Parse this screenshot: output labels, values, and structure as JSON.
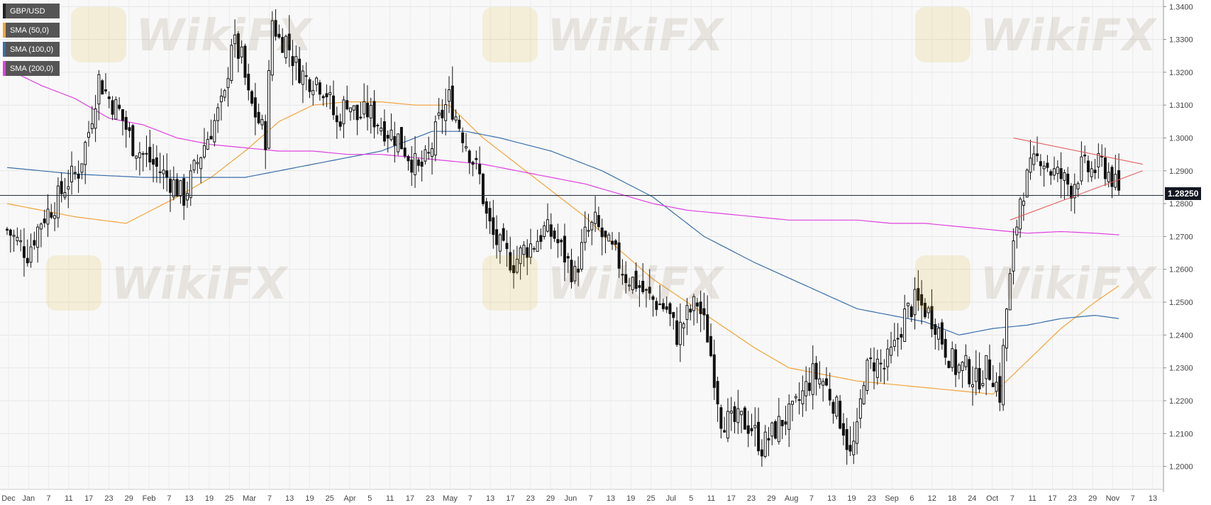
{
  "legend": [
    {
      "label": "GBP/USD",
      "color": "#222222"
    },
    {
      "label": "SMA (50,0)",
      "color": "#f2a33a"
    },
    {
      "label": "SMA (100,0)",
      "color": "#3a6ea8"
    },
    {
      "label": "SMA (200,0)",
      "color": "#e040e0"
    }
  ],
  "current_price_label": "1.28250",
  "watermark": "WikiFX",
  "chart_data": {
    "type": "candlestick",
    "symbol": "GBP/USD",
    "timeframe": "daily",
    "ylim": [
      1.193,
      1.342
    ],
    "y_ticks": [
      "1.3400",
      "1.3300",
      "1.3200",
      "1.3100",
      "1.3000",
      "1.2900",
      "1.2800",
      "1.2700",
      "1.2600",
      "1.2500",
      "1.2400",
      "1.2300",
      "1.2200",
      "1.2100",
      "1.2000"
    ],
    "x_ticks": [
      "Dec",
      "Jan",
      "7",
      "11",
      "17",
      "23",
      "29",
      "Feb",
      "7",
      "13",
      "19",
      "25",
      "Mar",
      "7",
      "13",
      "19",
      "25",
      "Apr",
      "5",
      "11",
      "17",
      "23",
      "May",
      "7",
      "13",
      "17",
      "23",
      "29",
      "Jun",
      "7",
      "13",
      "19",
      "25",
      "Jul",
      "5",
      "11",
      "17",
      "23",
      "29",
      "Aug",
      "7",
      "13",
      "19",
      "23",
      "Sep",
      "6",
      "12",
      "18",
      "24",
      "Oct",
      "7",
      "11",
      "17",
      "23",
      "29",
      "Nov",
      "7",
      "13"
    ],
    "current_price": 1.2825,
    "close_path": [
      [
        0,
        1.272
      ],
      [
        6,
        1.265
      ],
      [
        10,
        1.275
      ],
      [
        14,
        1.28
      ],
      [
        18,
        1.287
      ],
      [
        21,
        1.29
      ],
      [
        24,
        1.302
      ],
      [
        27,
        1.318
      ],
      [
        30,
        1.312
      ],
      [
        33,
        1.308
      ],
      [
        37,
        1.298
      ],
      [
        41,
        1.294
      ],
      [
        45,
        1.29
      ],
      [
        49,
        1.286
      ],
      [
        52,
        1.282
      ],
      [
        55,
        1.29
      ],
      [
        58,
        1.298
      ],
      [
        61,
        1.305
      ],
      [
        64,
        1.312
      ],
      [
        66,
        1.33
      ],
      [
        69,
        1.324
      ],
      [
        71,
        1.312
      ],
      [
        74,
        1.305
      ],
      [
        76,
        1.3
      ],
      [
        78,
        1.336
      ],
      [
        80,
        1.33
      ],
      [
        82,
        1.33
      ],
      [
        85,
        1.322
      ],
      [
        88,
        1.318
      ],
      [
        91,
        1.318
      ],
      [
        94,
        1.314
      ],
      [
        97,
        1.304
      ],
      [
        100,
        1.312
      ],
      [
        103,
        1.306
      ],
      [
        106,
        1.308
      ],
      [
        109,
        1.305
      ],
      [
        112,
        1.302
      ],
      [
        115,
        1.3
      ],
      [
        118,
        1.295
      ],
      [
        121,
        1.29
      ],
      [
        124,
        1.294
      ],
      [
        127,
        1.305
      ],
      [
        130,
        1.312
      ],
      [
        133,
        1.304
      ],
      [
        136,
        1.296
      ],
      [
        139,
        1.288
      ],
      [
        141,
        1.276
      ],
      [
        143,
        1.27
      ],
      [
        146,
        1.265
      ],
      [
        149,
        1.262
      ],
      [
        152,
        1.266
      ],
      [
        155,
        1.268
      ],
      [
        158,
        1.272
      ],
      [
        161,
        1.27
      ],
      [
        164,
        1.264
      ],
      [
        167,
        1.258
      ],
      [
        170,
        1.27
      ],
      [
        173,
        1.274
      ],
      [
        176,
        1.268
      ],
      [
        179,
        1.264
      ],
      [
        182,
        1.258
      ],
      [
        185,
        1.256
      ],
      [
        188,
        1.252
      ],
      [
        191,
        1.25
      ],
      [
        194,
        1.248
      ],
      [
        197,
        1.24
      ],
      [
        200,
        1.246
      ],
      [
        203,
        1.25
      ],
      [
        206,
        1.24
      ],
      [
        208,
        1.228
      ],
      [
        210,
        1.215
      ],
      [
        213,
        1.213
      ],
      [
        216,
        1.214
      ],
      [
        219,
        1.212
      ],
      [
        222,
        1.206
      ],
      [
        225,
        1.21
      ],
      [
        228,
        1.214
      ],
      [
        231,
        1.216
      ],
      [
        234,
        1.222
      ],
      [
        237,
        1.228
      ],
      [
        240,
        1.226
      ],
      [
        243,
        1.22
      ],
      [
        246,
        1.212
      ],
      [
        248,
        1.203
      ],
      [
        250,
        1.21
      ],
      [
        252,
        1.228
      ],
      [
        255,
        1.232
      ],
      [
        258,
        1.23
      ],
      [
        261,
        1.236
      ],
      [
        264,
        1.246
      ],
      [
        267,
        1.25
      ],
      [
        270,
        1.248
      ],
      [
        273,
        1.244
      ],
      [
        276,
        1.236
      ],
      [
        279,
        1.23
      ],
      [
        282,
        1.23
      ],
      [
        285,
        1.226
      ],
      [
        288,
        1.23
      ],
      [
        290,
        1.228
      ],
      [
        292,
        1.222
      ],
      [
        294,
        1.248
      ],
      [
        296,
        1.266
      ],
      [
        298,
        1.282
      ],
      [
        301,
        1.29
      ],
      [
        304,
        1.295
      ],
      [
        307,
        1.29
      ],
      [
        310,
        1.288
      ],
      [
        313,
        1.285
      ],
      [
        316,
        1.291
      ],
      [
        319,
        1.29
      ],
      [
        322,
        1.292
      ],
      [
        325,
        1.288
      ],
      [
        327,
        1.2825
      ]
    ],
    "series": [
      {
        "name": "SMA (50,0)",
        "points": [
          [
            0,
            1.28
          ],
          [
            20,
            1.276
          ],
          [
            35,
            1.274
          ],
          [
            50,
            1.282
          ],
          [
            60,
            1.288
          ],
          [
            70,
            1.296
          ],
          [
            80,
            1.305
          ],
          [
            90,
            1.31
          ],
          [
            100,
            1.311
          ],
          [
            110,
            1.311
          ],
          [
            120,
            1.31
          ],
          [
            130,
            1.31
          ],
          [
            140,
            1.3
          ],
          [
            150,
            1.292
          ],
          [
            160,
            1.284
          ],
          [
            170,
            1.276
          ],
          [
            180,
            1.266
          ],
          [
            190,
            1.257
          ],
          [
            200,
            1.25
          ],
          [
            210,
            1.243
          ],
          [
            220,
            1.236
          ],
          [
            230,
            1.23
          ],
          [
            240,
            1.228
          ],
          [
            250,
            1.226
          ],
          [
            260,
            1.225
          ],
          [
            270,
            1.224
          ],
          [
            280,
            1.223
          ],
          [
            290,
            1.222
          ],
          [
            300,
            1.232
          ],
          [
            310,
            1.242
          ],
          [
            320,
            1.25
          ],
          [
            327,
            1.255
          ]
        ]
      },
      {
        "name": "SMA (100,0)",
        "points": [
          [
            0,
            1.291
          ],
          [
            20,
            1.289
          ],
          [
            40,
            1.288
          ],
          [
            55,
            1.288
          ],
          [
            70,
            1.288
          ],
          [
            80,
            1.29
          ],
          [
            95,
            1.293
          ],
          [
            110,
            1.296
          ],
          [
            125,
            1.302
          ],
          [
            135,
            1.302
          ],
          [
            145,
            1.3
          ],
          [
            160,
            1.296
          ],
          [
            175,
            1.29
          ],
          [
            190,
            1.282
          ],
          [
            205,
            1.27
          ],
          [
            220,
            1.262
          ],
          [
            235,
            1.255
          ],
          [
            250,
            1.248
          ],
          [
            260,
            1.246
          ],
          [
            270,
            1.244
          ],
          [
            280,
            1.24
          ],
          [
            290,
            1.242
          ],
          [
            300,
            1.243
          ],
          [
            310,
            1.245
          ],
          [
            320,
            1.246
          ],
          [
            327,
            1.245
          ]
        ]
      },
      {
        "name": "SMA (200,0)",
        "points": [
          [
            0,
            1.321
          ],
          [
            10,
            1.316
          ],
          [
            20,
            1.312
          ],
          [
            30,
            1.306
          ],
          [
            40,
            1.304
          ],
          [
            50,
            1.3
          ],
          [
            60,
            1.298
          ],
          [
            70,
            1.297
          ],
          [
            80,
            1.296
          ],
          [
            90,
            1.296
          ],
          [
            100,
            1.295
          ],
          [
            110,
            1.295
          ],
          [
            120,
            1.294
          ],
          [
            130,
            1.293
          ],
          [
            140,
            1.292
          ],
          [
            150,
            1.29
          ],
          [
            160,
            1.288
          ],
          [
            170,
            1.286
          ],
          [
            180,
            1.283
          ],
          [
            190,
            1.28
          ],
          [
            200,
            1.278
          ],
          [
            210,
            1.277
          ],
          [
            220,
            1.276
          ],
          [
            230,
            1.275
          ],
          [
            240,
            1.275
          ],
          [
            250,
            1.275
          ],
          [
            260,
            1.274
          ],
          [
            270,
            1.274
          ],
          [
            280,
            1.273
          ],
          [
            290,
            1.272
          ],
          [
            300,
            1.271
          ],
          [
            310,
            1.2715
          ],
          [
            320,
            1.271
          ],
          [
            327,
            1.2705
          ]
        ]
      }
    ],
    "trendlines": [
      {
        "name": "upper",
        "color": "#e05050",
        "from": [
          296,
          1.3
        ],
        "to": [
          334,
          1.292
        ]
      },
      {
        "name": "lower",
        "color": "#e05050",
        "from": [
          295,
          1.275
        ],
        "to": [
          334,
          1.29
        ]
      }
    ]
  }
}
